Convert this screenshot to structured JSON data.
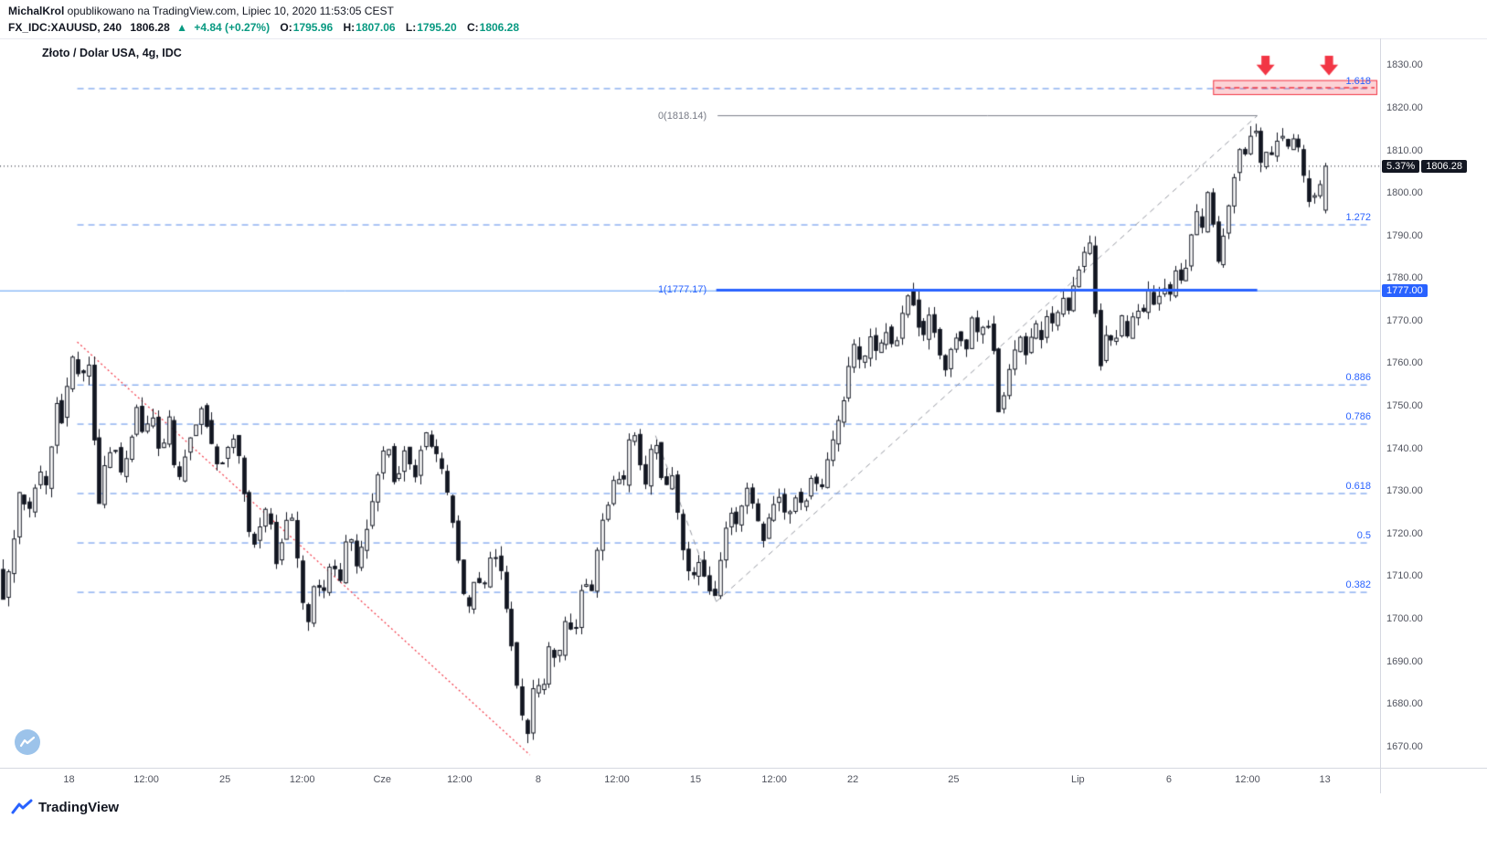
{
  "header": {
    "author": "MichalKrol",
    "published": " opublikowano na TradingView.com, Lipiec 10, 2020 11:53:05 CEST",
    "symbol": "FX_IDC:XAUUSD, 240",
    "last": "1806.28",
    "arrow": "▲",
    "change": "+4.84 (+0.27%)",
    "ohlc": {
      "o_label": "O:",
      "o": "1795.96",
      "h_label": "H:",
      "h": "1807.06",
      "l_label": "L:",
      "l": "1795.20",
      "c_label": "C:",
      "c": "1806.28"
    }
  },
  "chart": {
    "title": "Złoto / Dolar USA, 4g, IDC"
  },
  "footer": {
    "brand": "TradingView"
  },
  "chart_data": {
    "type": "candlestick",
    "symbol": "FX_IDC:XAUUSD",
    "timeframe": "240",
    "title": "Złoto / Dolar USA, 4g, IDC",
    "last_candle": {
      "open": 1795.96,
      "high": 1807.06,
      "low": 1795.2,
      "close": 1806.28
    },
    "change": {
      "abs": 4.84,
      "pct": 0.27
    },
    "candle_count": 248,
    "data_end_x": 0.962,
    "y_axis": {
      "min": 1665.0,
      "max": 1836.3,
      "ticks": [
        1830,
        1820,
        1810,
        1800,
        1790,
        1780,
        1770,
        1760,
        1750,
        1740,
        1730,
        1720,
        1710,
        1700,
        1690,
        1680,
        1670
      ]
    },
    "x_axis_ticks": [
      {
        "label": "18",
        "x": 0.05
      },
      {
        "label": "12:00",
        "x": 0.106
      },
      {
        "label": "25",
        "x": 0.163
      },
      {
        "label": "12:00",
        "x": 0.219
      },
      {
        "label": "Cze",
        "x": 0.277
      },
      {
        "label": "12:00",
        "x": 0.333
      },
      {
        "label": "8",
        "x": 0.39
      },
      {
        "label": "12:00",
        "x": 0.447
      },
      {
        "label": "15",
        "x": 0.504
      },
      {
        "label": "12:00",
        "x": 0.561
      },
      {
        "label": "22",
        "x": 0.618
      },
      {
        "label": "25",
        "x": 0.691
      },
      {
        "label": "Lip",
        "x": 0.781
      },
      {
        "label": "6",
        "x": 0.847
      },
      {
        "label": "12:00",
        "x": 0.904
      },
      {
        "label": "13",
        "x": 0.96
      }
    ],
    "fib_levels": [
      {
        "label": "1.618",
        "price": 1824.5
      },
      {
        "label": "1.272",
        "price": 1792.5
      },
      {
        "label": "0.886",
        "price": 1754.9
      },
      {
        "label": "0.786",
        "price": 1745.7
      },
      {
        "label": "0.618",
        "price": 1729.4
      },
      {
        "label": "0.5",
        "price": 1717.8
      },
      {
        "label": "0.382",
        "price": 1706.2
      }
    ],
    "anchor_labels": [
      {
        "label": "0(1818.14)",
        "price": 1818.14,
        "x": 0.516,
        "color": "#787b86"
      },
      {
        "label": "1(1777.17)",
        "price": 1777.17,
        "x": 0.516,
        "color": "#2962ff"
      }
    ],
    "badges": {
      "percent": "5.37%",
      "last": "1806.28",
      "last_price_value": 1806.28,
      "level": "1777.00",
      "level_price_value": 1777.0
    },
    "overlays": {
      "full_level_line": {
        "price": 1777.0,
        "color": "#5b9cf5"
      },
      "current_price_line": {
        "price": 1806.28,
        "color": "#131722"
      },
      "fib_x_range": [
        0.056,
        0.993
      ],
      "fib_dash_color": "#568ae8",
      "red_trendline": {
        "x1": 0.056,
        "p1": 1765,
        "x2": 0.384,
        "p2": 1668,
        "color": "#f23645"
      },
      "gray_dashed_segments": [
        {
          "x1": 0.475,
          "p1": 1743,
          "x2": 0.519,
          "p2": 1704
        },
        {
          "x1": 0.519,
          "p1": 1704,
          "x2": 0.911,
          "p2": 1818.14
        }
      ],
      "gray_level_segment": {
        "price": 1818.14,
        "x1": 0.52,
        "x2": 0.911,
        "color": "#787b86"
      },
      "blue_level_segment": {
        "price": 1777.17,
        "x1": 0.519,
        "x2": 0.911,
        "color": "#2962ff"
      },
      "resistance_zone": {
        "x1": 0.879,
        "x2": 0.998,
        "p_top": 1826.5,
        "p_bottom": 1823.0,
        "fill": "rgba(242,54,69,0.22)",
        "border": "#f23645",
        "mid_price": 1824.7
      },
      "down_arrows": {
        "xs": [
          0.917,
          0.963
        ],
        "p_top": 1832.2,
        "p_bottom": 1827.6,
        "color": "#f23645"
      }
    },
    "price_path_pivots": [
      [
        0.0,
        1712
      ],
      [
        0.004,
        1705
      ],
      [
        0.01,
        1715
      ],
      [
        0.016,
        1731
      ],
      [
        0.022,
        1724
      ],
      [
        0.03,
        1735
      ],
      [
        0.036,
        1730
      ],
      [
        0.042,
        1752
      ],
      [
        0.047,
        1746
      ],
      [
        0.052,
        1758
      ],
      [
        0.056,
        1764
      ],
      [
        0.06,
        1752
      ],
      [
        0.064,
        1762
      ],
      [
        0.068,
        1758
      ],
      [
        0.072,
        1724
      ],
      [
        0.078,
        1736
      ],
      [
        0.084,
        1742
      ],
      [
        0.09,
        1733
      ],
      [
        0.096,
        1741
      ],
      [
        0.101,
        1750
      ],
      [
        0.106,
        1743
      ],
      [
        0.112,
        1748
      ],
      [
        0.118,
        1738
      ],
      [
        0.124,
        1747
      ],
      [
        0.13,
        1730
      ],
      [
        0.136,
        1739
      ],
      [
        0.142,
        1745
      ],
      [
        0.148,
        1750
      ],
      [
        0.155,
        1741
      ],
      [
        0.16,
        1735
      ],
      [
        0.166,
        1739
      ],
      [
        0.172,
        1744
      ],
      [
        0.178,
        1731
      ],
      [
        0.184,
        1716
      ],
      [
        0.19,
        1722
      ],
      [
        0.196,
        1727
      ],
      [
        0.202,
        1713
      ],
      [
        0.208,
        1722
      ],
      [
        0.214,
        1724
      ],
      [
        0.219,
        1708
      ],
      [
        0.224,
        1697
      ],
      [
        0.23,
        1710
      ],
      [
        0.236,
        1705
      ],
      [
        0.242,
        1715
      ],
      [
        0.248,
        1708
      ],
      [
        0.254,
        1722
      ],
      [
        0.26,
        1712
      ],
      [
        0.268,
        1722
      ],
      [
        0.274,
        1732
      ],
      [
        0.282,
        1742
      ],
      [
        0.288,
        1731
      ],
      [
        0.295,
        1740
      ],
      [
        0.302,
        1733
      ],
      [
        0.309,
        1744
      ],
      [
        0.316,
        1740
      ],
      [
        0.322,
        1735
      ],
      [
        0.328,
        1726
      ],
      [
        0.334,
        1713
      ],
      [
        0.34,
        1700
      ],
      [
        0.346,
        1710
      ],
      [
        0.352,
        1706
      ],
      [
        0.358,
        1717
      ],
      [
        0.364,
        1712
      ],
      [
        0.37,
        1700
      ],
      [
        0.376,
        1685
      ],
      [
        0.381,
        1675
      ],
      [
        0.385,
        1672
      ],
      [
        0.389,
        1687
      ],
      [
        0.394,
        1681
      ],
      [
        0.4,
        1694
      ],
      [
        0.406,
        1690
      ],
      [
        0.412,
        1700
      ],
      [
        0.418,
        1695
      ],
      [
        0.424,
        1710
      ],
      [
        0.43,
        1705
      ],
      [
        0.436,
        1720
      ],
      [
        0.442,
        1727
      ],
      [
        0.448,
        1735
      ],
      [
        0.453,
        1730
      ],
      [
        0.458,
        1742
      ],
      [
        0.463,
        1744
      ],
      [
        0.468,
        1728
      ],
      [
        0.473,
        1739
      ],
      [
        0.478,
        1742
      ],
      [
        0.483,
        1728
      ],
      [
        0.488,
        1736
      ],
      [
        0.493,
        1724
      ],
      [
        0.498,
        1714
      ],
      [
        0.503,
        1708
      ],
      [
        0.508,
        1714
      ],
      [
        0.513,
        1709
      ],
      [
        0.519,
        1704
      ],
      [
        0.525,
        1717
      ],
      [
        0.53,
        1726
      ],
      [
        0.536,
        1722
      ],
      [
        0.542,
        1731
      ],
      [
        0.548,
        1726
      ],
      [
        0.554,
        1718
      ],
      [
        0.56,
        1725
      ],
      [
        0.566,
        1729
      ],
      [
        0.572,
        1723
      ],
      [
        0.578,
        1729
      ],
      [
        0.584,
        1726
      ],
      [
        0.59,
        1734
      ],
      [
        0.596,
        1729
      ],
      [
        0.602,
        1738
      ],
      [
        0.608,
        1745
      ],
      [
        0.614,
        1753
      ],
      [
        0.62,
        1765
      ],
      [
        0.626,
        1759
      ],
      [
        0.632,
        1766
      ],
      [
        0.638,
        1762
      ],
      [
        0.644,
        1768
      ],
      [
        0.65,
        1763
      ],
      [
        0.656,
        1772
      ],
      [
        0.661,
        1778
      ],
      [
        0.666,
        1770
      ],
      [
        0.671,
        1766
      ],
      [
        0.676,
        1773
      ],
      [
        0.681,
        1763
      ],
      [
        0.686,
        1758
      ],
      [
        0.691,
        1764
      ],
      [
        0.696,
        1768
      ],
      [
        0.701,
        1762
      ],
      [
        0.706,
        1770
      ],
      [
        0.711,
        1766
      ],
      [
        0.716,
        1771
      ],
      [
        0.721,
        1765
      ],
      [
        0.726,
        1747
      ],
      [
        0.731,
        1755
      ],
      [
        0.736,
        1762
      ],
      [
        0.741,
        1766
      ],
      [
        0.746,
        1761
      ],
      [
        0.751,
        1770
      ],
      [
        0.756,
        1765
      ],
      [
        0.761,
        1772
      ],
      [
        0.766,
        1768
      ],
      [
        0.771,
        1776
      ],
      [
        0.776,
        1772
      ],
      [
        0.781,
        1780
      ],
      [
        0.786,
        1784
      ],
      [
        0.791,
        1789
      ],
      [
        0.795,
        1773
      ],
      [
        0.799,
        1760
      ],
      [
        0.804,
        1768
      ],
      [
        0.809,
        1763
      ],
      [
        0.814,
        1771
      ],
      [
        0.819,
        1766
      ],
      [
        0.824,
        1774
      ],
      [
        0.829,
        1770
      ],
      [
        0.834,
        1777
      ],
      [
        0.839,
        1773
      ],
      [
        0.844,
        1779
      ],
      [
        0.849,
        1775
      ],
      [
        0.854,
        1782
      ],
      [
        0.859,
        1778
      ],
      [
        0.864,
        1788
      ],
      [
        0.869,
        1795
      ],
      [
        0.873,
        1791
      ],
      [
        0.877,
        1801
      ],
      [
        0.881,
        1792
      ],
      [
        0.885,
        1782
      ],
      [
        0.889,
        1792
      ],
      [
        0.893,
        1799
      ],
      [
        0.897,
        1806
      ],
      [
        0.901,
        1811
      ],
      [
        0.905,
        1808
      ],
      [
        0.908,
        1814
      ],
      [
        0.911,
        1816
      ],
      [
        0.914,
        1808
      ],
      [
        0.917,
        1805
      ],
      [
        0.92,
        1811
      ],
      [
        0.923,
        1809
      ],
      [
        0.926,
        1813
      ],
      [
        0.929,
        1812
      ],
      [
        0.932,
        1814
      ],
      [
        0.935,
        1810
      ],
      [
        0.938,
        1812
      ],
      [
        0.941,
        1813
      ],
      [
        0.944,
        1808
      ],
      [
        0.947,
        1803
      ],
      [
        0.95,
        1799
      ],
      [
        0.953,
        1797
      ],
      [
        0.956,
        1801
      ],
      [
        0.959,
        1803
      ],
      [
        0.962,
        1806.28
      ]
    ]
  }
}
